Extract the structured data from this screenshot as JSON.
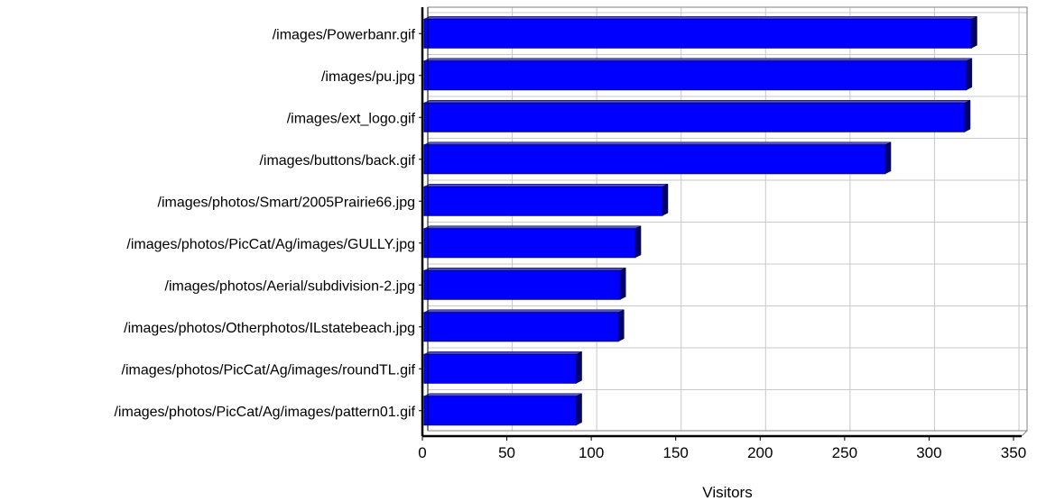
{
  "chart_data": {
    "type": "bar",
    "orientation": "horizontal",
    "title": "",
    "xlabel": "Visitors",
    "ylabel": "",
    "xlim": [
      0,
      350
    ],
    "x_ticks": [
      0,
      50,
      100,
      150,
      200,
      250,
      300,
      350
    ],
    "grid": true,
    "legend": "none",
    "bar_color": "#0000ff",
    "categories": [
      "/images/Powerbanr.gif",
      "/images/pu.jpg",
      "/images/ext_logo.gif",
      "/images/buttons/back.gif",
      "/images/photos/Smart/2005Prairie66.jpg",
      "/images/photos/PicCat/Ag/images/GULLY.jpg",
      "/images/photos/Aerial/subdivision-2.jpg",
      "/images/photos/Otherphotos/ILstatebeach.jpg",
      "/images/photos/PicCat/Ag/images/roundTL.gif",
      "/images/photos/PicCat/Ag/images/pattern01.gif"
    ],
    "values": [
      323,
      320,
      319,
      272,
      140,
      124,
      115,
      114,
      89,
      89
    ]
  }
}
